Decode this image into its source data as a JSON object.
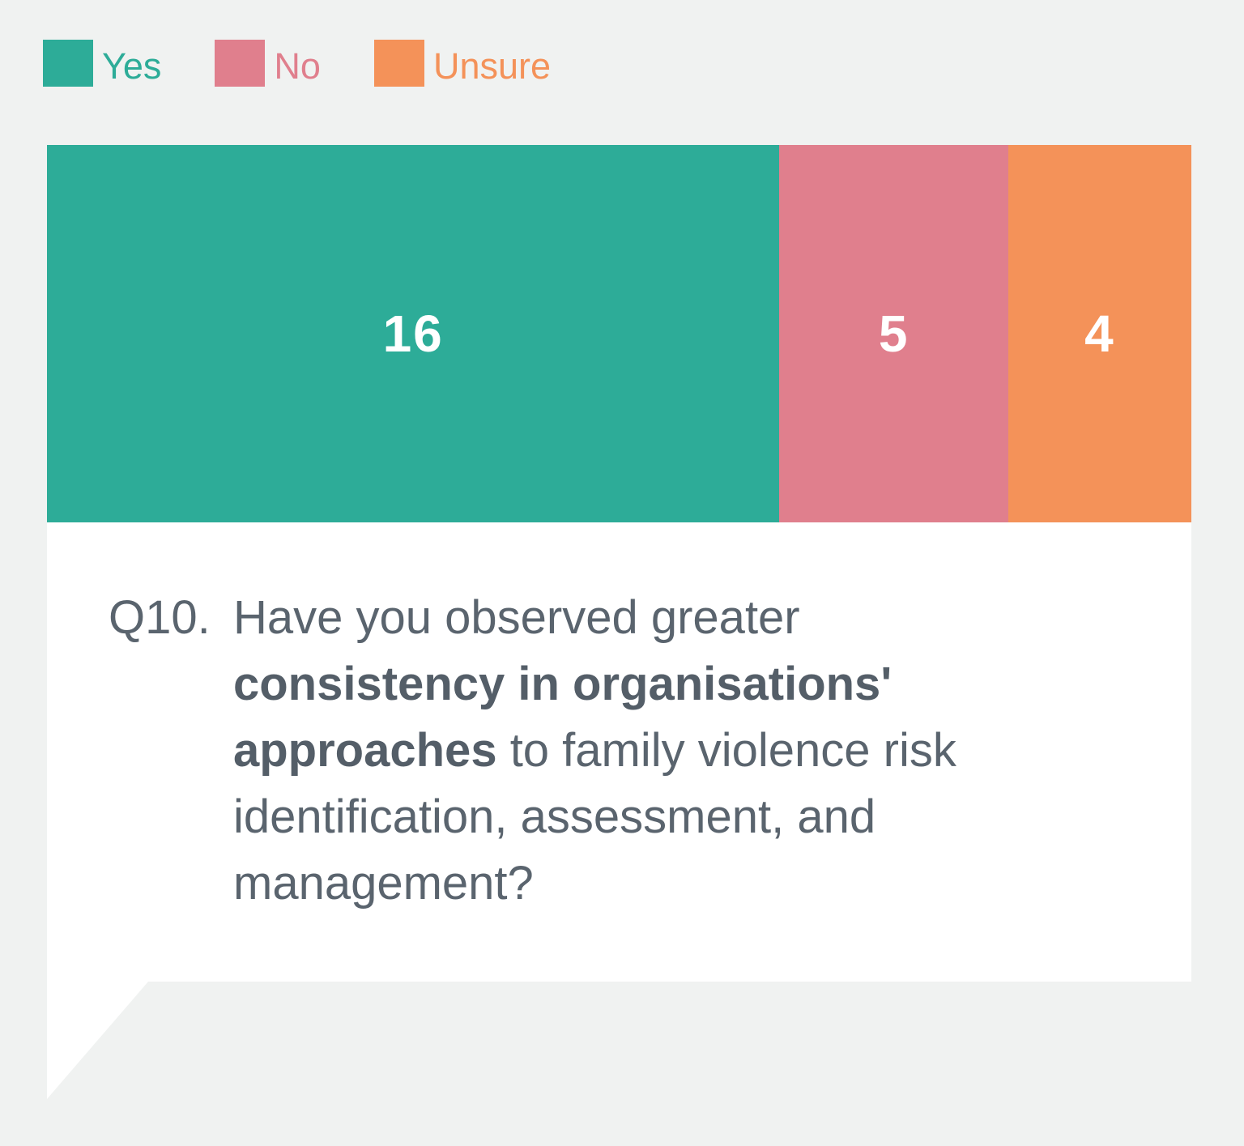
{
  "colors": {
    "background": "#F0F2F1",
    "card": "#FFFFFF",
    "question_text": "#5A646E",
    "bar_label_text": "#FFFFFF",
    "yes": "#2DAC98",
    "no": "#E07F8D",
    "unsure": "#F49259"
  },
  "legend": {
    "items": [
      {
        "label": "Yes",
        "color": "#2DAC98"
      },
      {
        "label": "No",
        "color": "#E07F8D"
      },
      {
        "label": "Unsure",
        "color": "#F49259"
      }
    ]
  },
  "chart_data": {
    "type": "bar",
    "subtype": "horizontal-stacked",
    "categories": [
      "Yes",
      "No",
      "Unsure"
    ],
    "values": [
      16,
      5,
      4
    ],
    "total": 25,
    "colors": [
      "#2DAC98",
      "#E07F8D",
      "#F49259"
    ],
    "data_labels": [
      "16",
      "5",
      "4"
    ],
    "legend_position": "top-left",
    "axes_visible": false,
    "grid": false
  },
  "question": {
    "number": "Q10.",
    "full_text": "Q10. Have you observed greater consistency in organisations' approaches to family violence risk identification, assessment, and management?",
    "lines": [
      [
        {
          "text": "Have you observed greater",
          "bold": false
        }
      ],
      [
        {
          "text": "consistency in organisations'",
          "bold": true
        }
      ],
      [
        {
          "text": "approaches",
          "bold": true
        },
        {
          "text": " to family violence risk",
          "bold": false
        }
      ],
      [
        {
          "text": "identification, assessment, and",
          "bold": false
        }
      ],
      [
        {
          "text": "management?",
          "bold": false
        }
      ]
    ]
  }
}
